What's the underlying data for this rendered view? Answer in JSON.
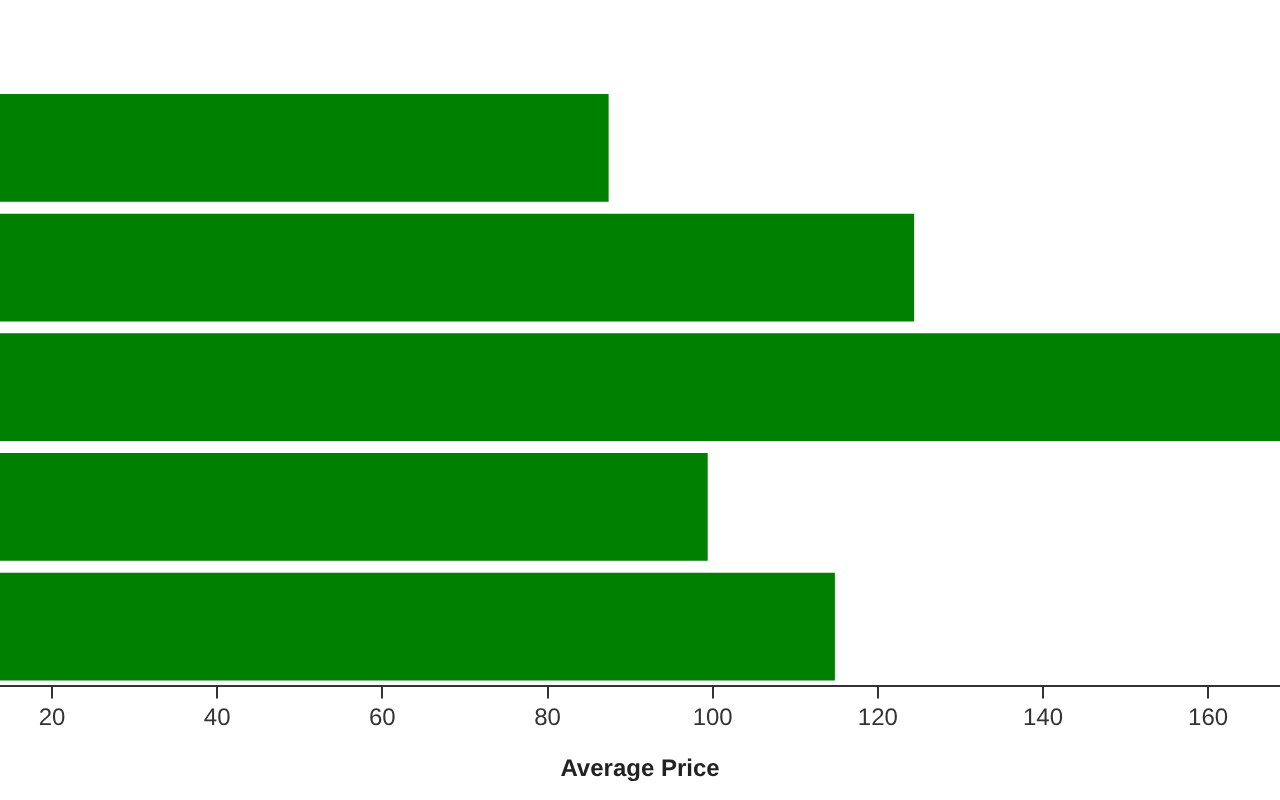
{
  "chart_data": {
    "type": "bar",
    "orientation": "horizontal",
    "xlabel": "Average Price",
    "categories": [
      null,
      null,
      null,
      null,
      null
    ],
    "values": [
      87.4,
      124.4,
      168.7,
      99.4,
      114.8
    ],
    "color": "#008000",
    "xlim": [
      13.7,
      168.7
    ],
    "xticks": [
      20,
      40,
      60,
      80,
      100,
      120,
      140,
      160
    ],
    "grid": false,
    "tick_labels": "x"
  }
}
